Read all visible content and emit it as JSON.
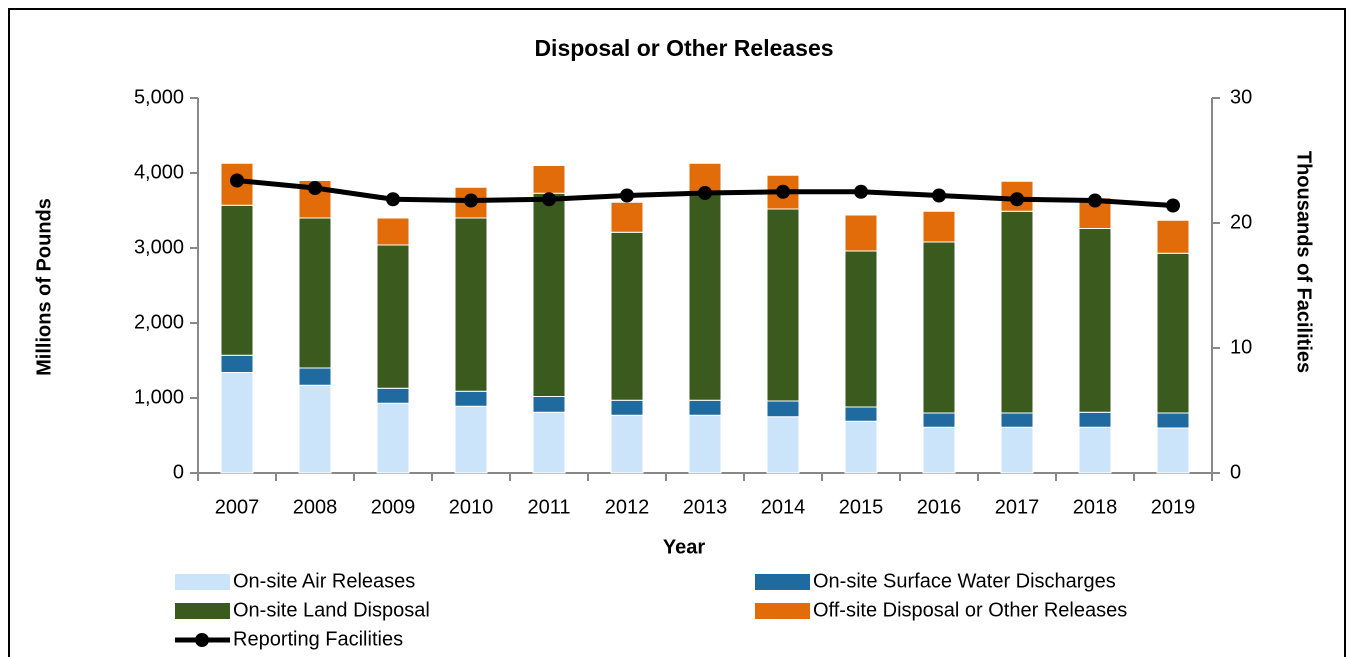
{
  "chart_data": {
    "type": "bar",
    "stacked": true,
    "title": "Disposal or Other Releases",
    "xlabel": "Year",
    "ylabel": "Millions of Pounds",
    "y2label": "Thousands of Facilities",
    "categories": [
      "2007",
      "2008",
      "2009",
      "2010",
      "2011",
      "2012",
      "2013",
      "2014",
      "2015",
      "2016",
      "2017",
      "2018",
      "2019"
    ],
    "series": [
      {
        "name": "On-site Air Releases",
        "color": "#cce4fa",
        "values": [
          1340,
          1170,
          930,
          890,
          810,
          770,
          770,
          750,
          690,
          610,
          610,
          610,
          600
        ]
      },
      {
        "name": "On-site Surface Water Discharges",
        "color": "#1f6a9e",
        "values": [
          230,
          230,
          200,
          200,
          210,
          200,
          200,
          210,
          190,
          190,
          190,
          200,
          200
        ]
      },
      {
        "name": "On-site Land Disposal",
        "color": "#3a5a1e",
        "values": [
          2000,
          2000,
          1910,
          2310,
          2710,
          2240,
          2760,
          2560,
          2080,
          2280,
          2690,
          2450,
          2130
        ]
      },
      {
        "name": "Off-site Disposal or Other Releases",
        "color": "#e26b0a",
        "values": [
          560,
          500,
          360,
          410,
          370,
          400,
          400,
          450,
          480,
          410,
          400,
          410,
          440
        ]
      },
      {
        "name": "Reporting Facilities",
        "color": "#000000",
        "type": "line",
        "axis": "y2",
        "values": [
          23.4,
          22.8,
          21.9,
          21.8,
          21.9,
          22.2,
          22.4,
          22.5,
          22.5,
          22.2,
          21.9,
          21.8,
          21.4
        ]
      }
    ],
    "ylim": [
      0,
      5000
    ],
    "yticks": [
      0,
      {
        "value": 1000,
        "label": "1,000"
      },
      {
        "value": 2000,
        "label": "2,000"
      },
      {
        "value": 3000,
        "label": "3,000"
      },
      {
        "value": 4000,
        "label": "4,000"
      },
      {
        "value": 5000,
        "label": "5,000"
      }
    ],
    "y2lim": [
      0,
      30
    ],
    "y2ticks": [
      0,
      10,
      20,
      30
    ]
  }
}
